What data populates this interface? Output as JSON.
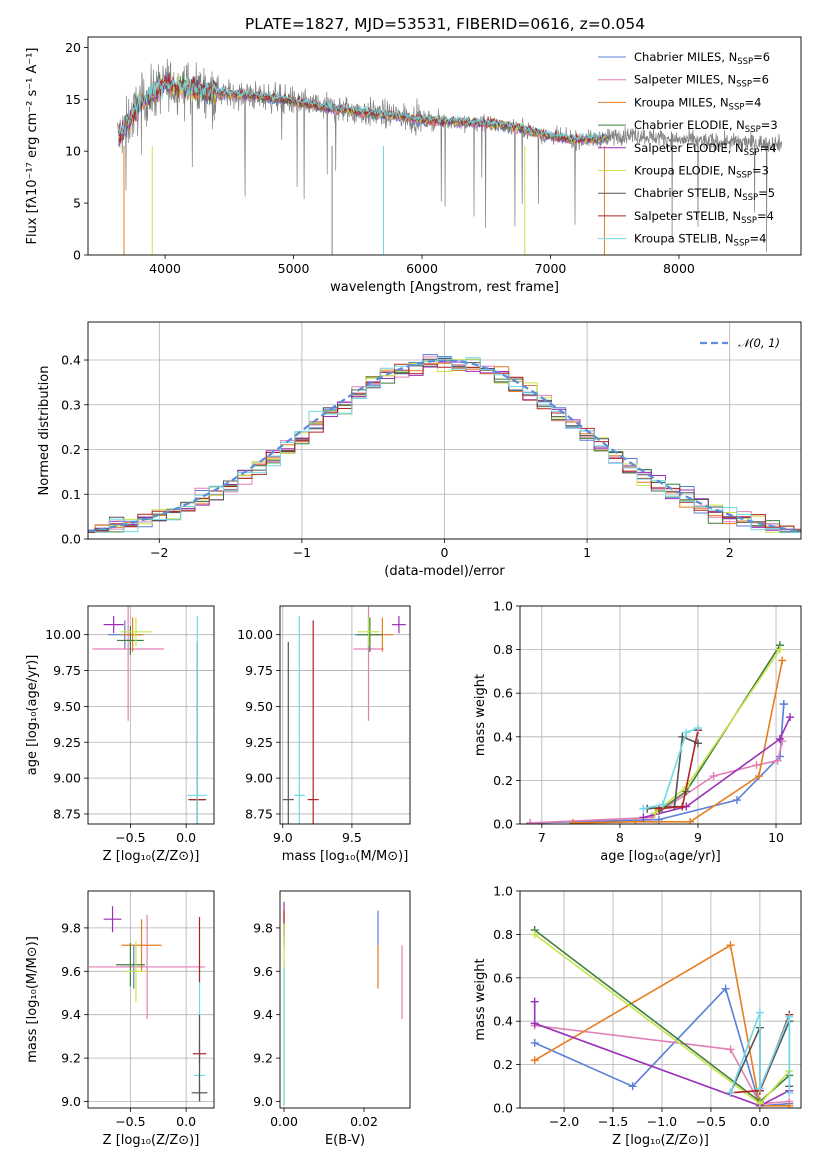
{
  "figure": {
    "title": "PLATE=1827, MJD=53531, FIBERID=0616, z=0.054",
    "colors": [
      "#5b7fd6",
      "#e37fb7",
      "#e67e22",
      "#3f7f3f",
      "#9b2fb8",
      "#c9e34a",
      "#555555",
      "#b22222",
      "#72d9e6"
    ]
  },
  "chart_data": [
    {
      "id": "spectrum",
      "type": "line",
      "title": "PLATE=1827, MJD=53531, FIBERID=0616, z=0.054",
      "xlabel": "wavelength [Angstrom, rest frame]",
      "ylabel": "Flux [fλ10⁻¹⁷ erg cm⁻² s⁻¹ A⁻¹]",
      "xlim": [
        3400,
        8950
      ],
      "ylim": [
        0,
        21
      ],
      "xticks": [
        4000,
        5000,
        6000,
        7000,
        8000
      ],
      "yticks": [
        0,
        5,
        10,
        15,
        20
      ],
      "grid": false,
      "legend_placement": "top-right",
      "series": [
        {
          "name": "Chabrier MILES, N_SSP=6",
          "nssp": "6",
          "color": "#5b7fd6"
        },
        {
          "name": "Salpeter MILES, N_SSP=6",
          "nssp": "6",
          "color": "#e37fb7"
        },
        {
          "name": "Kroupa MILES, N_SSP=4",
          "nssp": "4",
          "color": "#e67e22"
        },
        {
          "name": "Chabrier ELODIE, N_SSP=3",
          "nssp": "3",
          "color": "#3f7f3f"
        },
        {
          "name": "Salpeter ELODIE, N_SSP=4",
          "nssp": "4",
          "color": "#9b2fb8"
        },
        {
          "name": "Kroupa ELODIE, N_SSP=3",
          "nssp": "3",
          "color": "#c9e34a"
        },
        {
          "name": "Chabrier STELIB, N_SSP=5",
          "nssp": "5",
          "color": "#555555"
        },
        {
          "name": "Salpeter STELIB, N_SSP=4",
          "nssp": "4",
          "color": "#b22222"
        },
        {
          "name": "Kroupa STELIB, N_SSP=4",
          "nssp": "4",
          "color": "#72d9e6"
        }
      ],
      "data_trend": {
        "x": [
          3650,
          3800,
          4000,
          4200,
          4500,
          4800,
          5000,
          5200,
          5500,
          5800,
          6000,
          6300,
          6600,
          6800,
          7000,
          7200,
          7400,
          7600,
          7800,
          8000,
          8300,
          8600,
          8800
        ],
        "y": [
          11.5,
          14.5,
          16.5,
          16.0,
          15.5,
          15.2,
          14.8,
          14.3,
          13.8,
          13.4,
          13.0,
          12.8,
          12.6,
          12.1,
          11.4,
          11.1,
          11.2,
          11.6,
          11.4,
          11.1,
          10.9,
          10.8,
          10.7
        ]
      },
      "dips": [
        [
          3680,
          0
        ],
        [
          3900,
          0
        ],
        [
          5300,
          0
        ],
        [
          5700,
          0
        ],
        [
          6800,
          0
        ],
        [
          7420,
          0
        ]
      ]
    },
    {
      "id": "residuals",
      "type": "line",
      "xlabel": "(data-model)/error",
      "ylabel": "Normed distribution",
      "xlim": [
        -2.5,
        2.5
      ],
      "ylim": [
        0,
        0.485
      ],
      "xticks": [
        -2,
        -1,
        0,
        1,
        2
      ],
      "yticks": [
        0.0,
        0.1,
        0.2,
        0.3,
        0.4
      ],
      "grid": true,
      "legend_placement": "top-right",
      "reference_curve": {
        "name": "𝒩(0, 1)",
        "color": "#5b8dd9",
        "style": "dashed"
      },
      "histogram_bin_width": 0.1
    },
    {
      "id": "age-vs-Z",
      "type": "scatter",
      "xlabel": "Z [log₁₀(Z/Z⊙)]",
      "ylabel": "age  [log₁₀(age/yr)]",
      "xlim": [
        -0.88,
        0.25
      ],
      "ylim": [
        8.68,
        10.2
      ],
      "xticks": [
        -0.5,
        0.0
      ],
      "yticks": [
        8.75,
        9.0,
        9.25,
        9.5,
        9.75,
        10.0
      ],
      "grid": true,
      "points": [
        {
          "x": -0.55,
          "y": 10.0,
          "ex": 0.15,
          "ey": 0.1,
          "color": "#5b7fd6"
        },
        {
          "x": -0.52,
          "y": 9.9,
          "ex": 0.32,
          "ey": 0.5,
          "color": "#e37fb7"
        },
        {
          "x": -0.48,
          "y": 10.0,
          "ex": 0.1,
          "ey": 0.12,
          "color": "#e67e22"
        },
        {
          "x": -0.5,
          "y": 9.96,
          "ex": 0.12,
          "ey": 0.1,
          "color": "#3f7f3f"
        },
        {
          "x": -0.65,
          "y": 10.07,
          "ex": 0.09,
          "ey": 0.06,
          "color": "#9b2fb8"
        },
        {
          "x": -0.45,
          "y": 10.02,
          "ex": 0.14,
          "ey": 0.1,
          "color": "#c9e34a"
        },
        {
          "x": 0.1,
          "y": 8.85,
          "ex": 0.08,
          "ey": 1.1,
          "color": "#555555"
        },
        {
          "x": 0.1,
          "y": 8.85,
          "ex": 0.07,
          "ey": 0.04,
          "color": "#b22222"
        },
        {
          "x": 0.1,
          "y": 8.88,
          "ex": 0.09,
          "ey": 1.25,
          "color": "#72d9e6"
        }
      ]
    },
    {
      "id": "age-vs-mass",
      "type": "scatter",
      "xlabel": "mass [log₁₀(M/M⊙)]",
      "ylabel": "",
      "xlim": [
        8.98,
        9.92
      ],
      "ylim": [
        8.68,
        10.2
      ],
      "xticks": [
        9.0,
        9.5
      ],
      "yticks": [
        8.75,
        9.0,
        9.25,
        9.5,
        9.75,
        10.0
      ],
      "grid": true,
      "points": [
        {
          "x": 9.62,
          "y": 10.0,
          "ex": 0.1,
          "ey": 0.12,
          "color": "#5b7fd6"
        },
        {
          "x": 9.62,
          "y": 9.9,
          "ex": 0.11,
          "ey": 0.5,
          "color": "#e37fb7"
        },
        {
          "x": 9.72,
          "y": 10.0,
          "ex": 0.08,
          "ey": 0.12,
          "color": "#e67e22"
        },
        {
          "x": 9.63,
          "y": 10.0,
          "ex": 0.09,
          "ey": 0.12,
          "color": "#3f7f3f"
        },
        {
          "x": 9.84,
          "y": 10.07,
          "ex": 0.05,
          "ey": 0.06,
          "color": "#9b2fb8"
        },
        {
          "x": 9.62,
          "y": 10.02,
          "ex": 0.08,
          "ey": 0.1,
          "color": "#c9e34a"
        },
        {
          "x": 9.04,
          "y": 8.85,
          "ex": 0.04,
          "ey": 1.1,
          "color": "#555555"
        },
        {
          "x": 9.22,
          "y": 8.85,
          "ex": 0.04,
          "ey": 1.25,
          "color": "#b22222"
        },
        {
          "x": 9.12,
          "y": 8.88,
          "ex": 0.04,
          "ey": 1.25,
          "color": "#72d9e6"
        }
      ]
    },
    {
      "id": "weight-vs-age",
      "type": "line",
      "xlabel": "age  [log₁₀(age/yr)]",
      "ylabel": "mass weight",
      "xlim": [
        6.72,
        10.32
      ],
      "ylim": [
        0,
        1.0
      ],
      "xticks": [
        7,
        8,
        9,
        10
      ],
      "yticks": [
        0.0,
        0.2,
        0.4,
        0.6,
        0.8,
        1.0
      ],
      "grid": true,
      "series": [
        {
          "color": "#5b7fd6",
          "x": [
            6.85,
            8.5,
            9.5,
            10.05,
            10.1,
            10.1
          ],
          "y": [
            0.005,
            0.02,
            0.11,
            0.31,
            0.55,
            0.55
          ]
        },
        {
          "color": "#e37fb7",
          "x": [
            6.85,
            8.4,
            9.2,
            9.75,
            10.02,
            10.08
          ],
          "y": [
            0.005,
            0.03,
            0.22,
            0.27,
            0.29,
            0.38
          ]
        },
        {
          "color": "#e67e22",
          "x": [
            7.4,
            8.2,
            8.9,
            9.78,
            10.08
          ],
          "y": [
            0.005,
            0.01,
            0.01,
            0.22,
            0.75
          ]
        },
        {
          "color": "#3f7f3f",
          "x": [
            8.5,
            8.85,
            10.05
          ],
          "y": [
            0.06,
            0.15,
            0.82
          ]
        },
        {
          "color": "#9b2fb8",
          "x": [
            8.3,
            8.85,
            10.05,
            10.18
          ],
          "y": [
            0.03,
            0.08,
            0.39,
            0.49
          ]
        },
        {
          "color": "#c9e34a",
          "x": [
            8.45,
            8.85,
            10.05
          ],
          "y": [
            0.05,
            0.17,
            0.8
          ]
        },
        {
          "color": "#555555",
          "x": [
            8.35,
            8.7,
            8.8,
            9.0
          ],
          "y": [
            0.07,
            0.08,
            0.4,
            0.37
          ]
        },
        {
          "color": "#b22222",
          "x": [
            8.5,
            8.8,
            9.0
          ],
          "y": [
            0.07,
            0.08,
            0.43
          ]
        },
        {
          "color": "#72d9e6",
          "x": [
            8.3,
            8.55,
            8.85,
            9.0
          ],
          "y": [
            0.07,
            0.09,
            0.42,
            0.44
          ]
        }
      ]
    },
    {
      "id": "mass-vs-Z",
      "type": "scatter",
      "xlabel": "Z [log₁₀(Z/Z⊙)]",
      "ylabel": "mass [log₁₀(M/M⊙)]",
      "xlim": [
        -0.88,
        0.25
      ],
      "ylim": [
        8.97,
        9.97
      ],
      "xticks": [
        -0.5,
        0.0
      ],
      "yticks": [
        9.0,
        9.2,
        9.4,
        9.6,
        9.8
      ],
      "grid": true,
      "points": [
        {
          "x": -0.47,
          "y": 9.62,
          "ex": 0.12,
          "ey": 0.1,
          "color": "#5b7fd6"
        },
        {
          "x": -0.35,
          "y": 9.62,
          "ex": 0.52,
          "ey": 0.24,
          "color": "#e37fb7"
        },
        {
          "x": -0.4,
          "y": 9.72,
          "ex": 0.18,
          "ey": 0.12,
          "color": "#e67e22"
        },
        {
          "x": -0.5,
          "y": 9.63,
          "ex": 0.13,
          "ey": 0.1,
          "color": "#3f7f3f"
        },
        {
          "x": -0.66,
          "y": 9.84,
          "ex": 0.08,
          "ey": 0.06,
          "color": "#9b2fb8"
        },
        {
          "x": -0.45,
          "y": 9.6,
          "ex": 0.1,
          "ey": 0.14,
          "color": "#c9e34a"
        },
        {
          "x": 0.12,
          "y": 9.04,
          "ex": 0.07,
          "ey": 0.04,
          "color": "#555555"
        },
        {
          "x": 0.12,
          "y": 9.22,
          "ex": 0.06,
          "ey": 0.04,
          "color": "#b22222"
        },
        {
          "x": 0.12,
          "y": 9.12,
          "ex": 0.05,
          "ey": 0.04,
          "color": "#72d9e6"
        }
      ],
      "extra_bars": [
        {
          "x": 0.12,
          "y": 9.45,
          "ey": 0.2,
          "color": "#72d9e6"
        },
        {
          "x": 0.12,
          "y": 9.2,
          "ey": 0.2,
          "color": "#555555"
        },
        {
          "x": 0.12,
          "y": 9.7,
          "ey": 0.15,
          "color": "#b22222"
        }
      ]
    },
    {
      "id": "mass-vs-EBV",
      "type": "scatter",
      "xlabel": "E(B-V)",
      "ylabel": "",
      "xlim": [
        -0.001,
        0.0315
      ],
      "ylim": [
        8.97,
        9.97
      ],
      "xticks": [
        0.0,
        0.02
      ],
      "yticks": [
        9.0,
        9.2,
        9.4,
        9.6,
        9.8
      ],
      "grid": false,
      "points": [
        {
          "x": 0.0,
          "y": 9.84,
          "ey": 0.08,
          "color": "#9b2fb8"
        },
        {
          "x": 0.0,
          "y": 9.8,
          "ey": 0.08,
          "color": "#b22222"
        },
        {
          "x": 0.0,
          "y": 9.4,
          "ey": 0.42,
          "color": "#c9e34a"
        },
        {
          "x": 0.0,
          "y": 9.3,
          "ey": 0.32,
          "color": "#72d9e6"
        },
        {
          "x": 0.0235,
          "y": 9.62,
          "ey": 0.1,
          "color": "#e67e22"
        },
        {
          "x": 0.0235,
          "y": 9.8,
          "ey": 0.08,
          "color": "#5b7fd6"
        },
        {
          "x": 0.0295,
          "y": 9.55,
          "ey": 0.17,
          "color": "#e37fb7"
        }
      ]
    },
    {
      "id": "weight-vs-Z",
      "type": "line",
      "xlabel": "Z [log₁₀(Z/Z⊙)]",
      "ylabel": "mass weight",
      "xlim": [
        -2.45,
        0.42
      ],
      "ylim": [
        0,
        1.0
      ],
      "xticks": [
        -2.0,
        -1.5,
        -1.0,
        -0.5,
        0.0
      ],
      "yticks": [
        0.0,
        0.2,
        0.4,
        0.6,
        0.8,
        1.0
      ],
      "grid": true,
      "series": [
        {
          "color": "#5b7fd6",
          "x": [
            -2.3,
            -1.3,
            -0.35,
            0.0,
            0.3
          ],
          "y": [
            0.3,
            0.1,
            0.55,
            0.01,
            0.02
          ]
        },
        {
          "color": "#e37fb7",
          "x": [
            -2.3,
            -0.3,
            0.0,
            0.3
          ],
          "y": [
            0.38,
            0.27,
            0.02,
            0.03
          ]
        },
        {
          "color": "#e67e22",
          "x": [
            -2.3,
            -0.3,
            0.0,
            0.3
          ],
          "y": [
            0.22,
            0.75,
            0.01,
            0.01
          ]
        },
        {
          "color": "#3f7f3f",
          "x": [
            -2.3,
            0.0,
            0.3
          ],
          "y": [
            0.82,
            0.03,
            0.15
          ]
        },
        {
          "color": "#9b2fb8",
          "x": [
            -2.3,
            -2.3,
            0.0,
            0.3
          ],
          "y": [
            0.49,
            0.39,
            0.01,
            0.08
          ]
        },
        {
          "color": "#c9e34a",
          "x": [
            -2.3,
            0.0,
            0.3
          ],
          "y": [
            0.8,
            0.02,
            0.17
          ]
        },
        {
          "color": "#555555",
          "x": [
            -0.3,
            0.0,
            0.0,
            0.3,
            0.3
          ],
          "y": [
            0.07,
            0.37,
            0.08,
            0.4,
            0.1
          ]
        },
        {
          "color": "#b22222",
          "x": [
            -0.3,
            0.0,
            0.3
          ],
          "y": [
            0.07,
            0.08,
            0.43
          ]
        },
        {
          "color": "#72d9e6",
          "x": [
            -0.3,
            0.0,
            0.0,
            0.3,
            0.3
          ],
          "y": [
            0.07,
            0.44,
            0.09,
            0.42,
            0.07
          ]
        }
      ]
    }
  ]
}
